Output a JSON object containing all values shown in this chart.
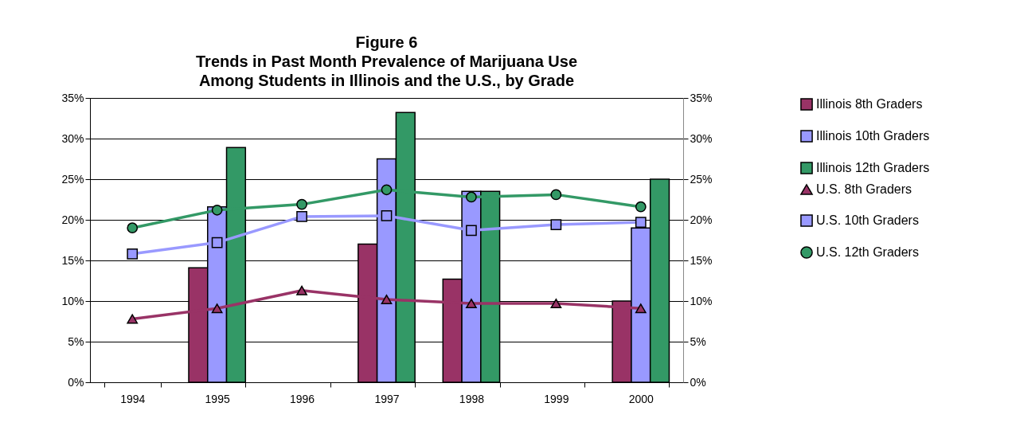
{
  "chart_data": {
    "type": "bar",
    "title": "Figure 6\nTrends in Past Month Prevalence of Marijuana Use\nAmong Students in Illinois and the U.S., by Grade",
    "categories": [
      "1994",
      "1995",
      "1996",
      "1997",
      "1998",
      "1999",
      "2000"
    ],
    "series": [
      {
        "name": "Illinois 8th Graders",
        "type": "bar",
        "color": "#993366",
        "values": [
          null,
          14.1,
          null,
          17.0,
          12.7,
          null,
          10.0
        ]
      },
      {
        "name": "Illinois 10th Graders",
        "type": "bar",
        "color": "#9999ff",
        "values": [
          null,
          21.6,
          null,
          27.5,
          23.5,
          null,
          19.0
        ]
      },
      {
        "name": "Illinois 12th Graders",
        "type": "bar",
        "color": "#339966",
        "values": [
          null,
          28.9,
          null,
          33.2,
          23.5,
          null,
          25.0
        ]
      },
      {
        "name": "U.S. 8th Graders",
        "type": "line",
        "marker": "triangle",
        "color": "#993366",
        "values": [
          7.8,
          9.1,
          11.3,
          10.2,
          9.7,
          9.7,
          9.1
        ]
      },
      {
        "name": "U.S. 10th Graders",
        "type": "line",
        "marker": "square",
        "color": "#9999ff",
        "values": [
          15.8,
          17.2,
          20.4,
          20.5,
          18.7,
          19.4,
          19.7
        ]
      },
      {
        "name": "U.S. 12th Graders",
        "type": "line",
        "marker": "circle",
        "color": "#339966",
        "values": [
          19.0,
          21.2,
          21.9,
          23.7,
          22.8,
          23.1,
          21.6
        ]
      }
    ],
    "ylim": [
      0,
      35
    ],
    "yticks": [
      {
        "value": 0,
        "label": "0%"
      },
      {
        "value": 5,
        "label": "5%"
      },
      {
        "value": 10,
        "label": "10%"
      },
      {
        "value": 15,
        "label": "15%"
      },
      {
        "value": 20,
        "label": "20%"
      },
      {
        "value": 25,
        "label": "25%"
      },
      {
        "value": 30,
        "label": "30%"
      },
      {
        "value": 35,
        "label": "35%"
      }
    ],
    "y2lim": [
      0,
      35
    ],
    "y2ticks": [
      {
        "value": 0,
        "label": "0%"
      },
      {
        "value": 5,
        "label": "5%"
      },
      {
        "value": 10,
        "label": "10%"
      },
      {
        "value": 15,
        "label": "15%"
      },
      {
        "value": 20,
        "label": "20%"
      },
      {
        "value": 25,
        "label": "25%"
      },
      {
        "value": 30,
        "label": "30%"
      },
      {
        "value": 35,
        "label": "35%"
      }
    ],
    "grid": "y",
    "legend": "right"
  }
}
